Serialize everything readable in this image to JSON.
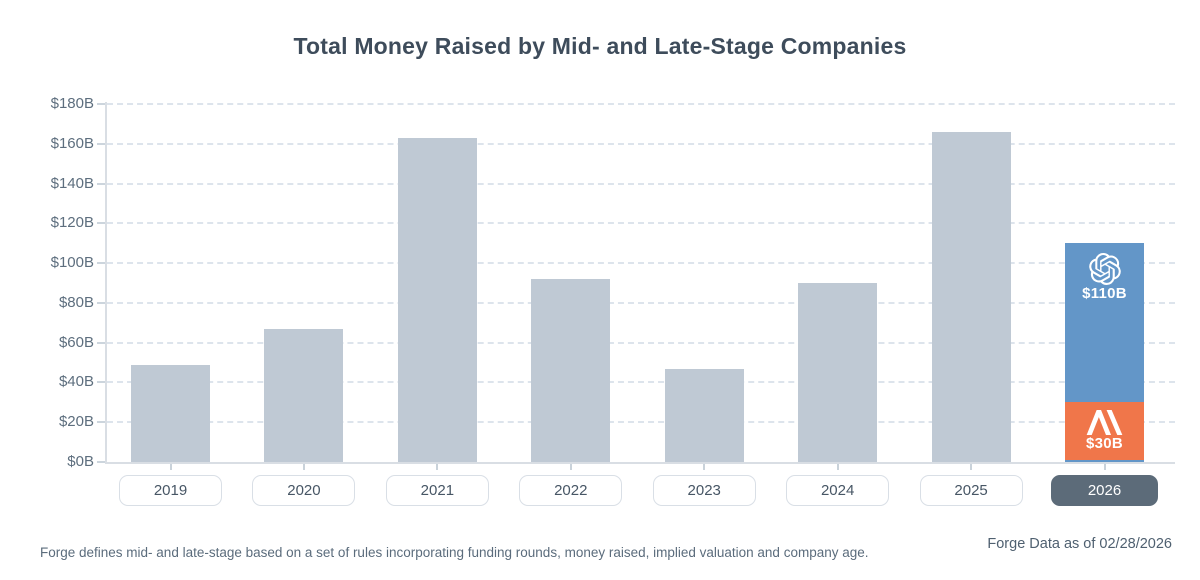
{
  "title": "Total Money Raised by Mid- and Late-Stage Companies",
  "footnote": "Forge defines mid- and late-stage based on a set of rules incorporating funding rounds, money raised, implied valuation and company age.",
  "source": "Forge Data as of 02/28/2026",
  "colors": {
    "bar_gray": "#bfc9d4",
    "openai_blue": "#6396c8",
    "anthropic_orange": "#f0764a",
    "selected_pill": "#5c6b79",
    "title_text": "#3e4c5b",
    "axis_text": "#5d6e7e"
  },
  "chart_data": {
    "type": "bar",
    "title": "Total Money Raised by Mid- and Late-Stage Companies",
    "unit": "USD billions",
    "xlabel": "",
    "ylabel": "",
    "ylim": [
      0,
      180
    ],
    "ytick_step": 20,
    "ytick_labels": [
      "$0B",
      "$20B",
      "$40B",
      "$60B",
      "$80B",
      "$100B",
      "$120B",
      "$140B",
      "$160B",
      "$180B"
    ],
    "grid": "horizontal-dashed",
    "legend": "none",
    "categories": [
      "2019",
      "2020",
      "2021",
      "2022",
      "2023",
      "2024",
      "2025",
      "2026"
    ],
    "bars": [
      {
        "year": "2019",
        "value": 49
      },
      {
        "year": "2020",
        "value": 67
      },
      {
        "year": "2021",
        "value": 163
      },
      {
        "year": "2022",
        "value": 92
      },
      {
        "year": "2023",
        "value": 47
      },
      {
        "year": "2024",
        "value": 90
      },
      {
        "year": "2025",
        "value": 166
      },
      {
        "year": "2026",
        "selected": true,
        "stack": [
          {
            "company": "OpenAI",
            "value": 110,
            "label": "$110B",
            "color": "#6396c8",
            "icon": "openai-logo"
          },
          {
            "company": "Anthropic",
            "value": 30,
            "label": "$30B",
            "color": "#f0764a",
            "icon": "anthropic-logo"
          }
        ]
      }
    ]
  }
}
